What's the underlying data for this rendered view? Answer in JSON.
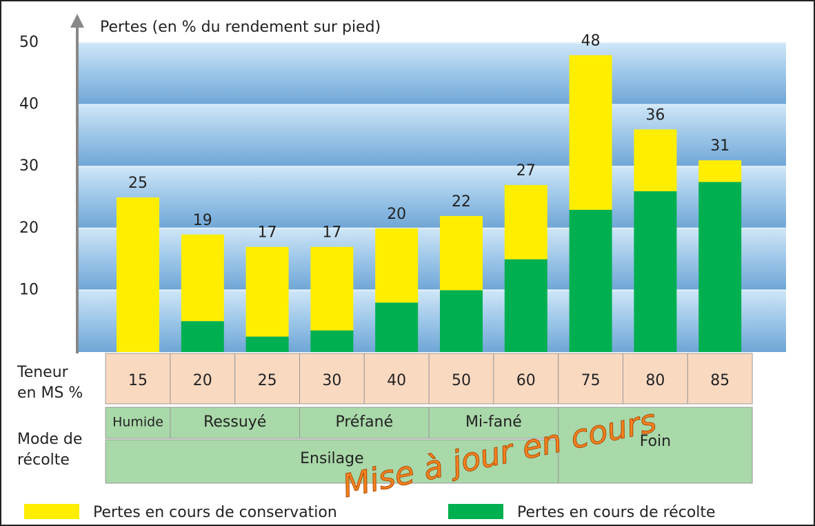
{
  "chart_data": {
    "type": "stacked-bar",
    "y_axis_title": "Pertes (en % du rendement sur pied)",
    "categories": [
      "15",
      "20",
      "25",
      "30",
      "40",
      "50",
      "60",
      "75",
      "80",
      "85"
    ],
    "series": [
      {
        "name": "Pertes en cours de conservation",
        "color": "#ffee00",
        "values": [
          25,
          14,
          14.5,
          13.5,
          12,
          12,
          12,
          25,
          10,
          3.5
        ]
      },
      {
        "name": "Pertes en cours de récolte",
        "color": "#00b050",
        "values": [
          0,
          5,
          2.5,
          3.5,
          8,
          10,
          15,
          23,
          26,
          27.5
        ]
      }
    ],
    "totals": [
      25,
      19,
      17,
      17,
      20,
      22,
      27,
      48,
      36,
      31
    ],
    "ylim": [
      0,
      50
    ],
    "yticks": [
      10,
      20,
      30,
      40,
      50
    ],
    "grid": true
  },
  "table": {
    "ms_label": [
      "Teneur",
      "en MS %"
    ],
    "mode_label": [
      "Mode de",
      "récolte"
    ],
    "modes": [
      "Humide",
      "Ressuyé",
      "Préfané",
      "Mi-fané",
      "Foin",
      "Ensilage"
    ]
  },
  "watermark": "Mise à jour en cours"
}
